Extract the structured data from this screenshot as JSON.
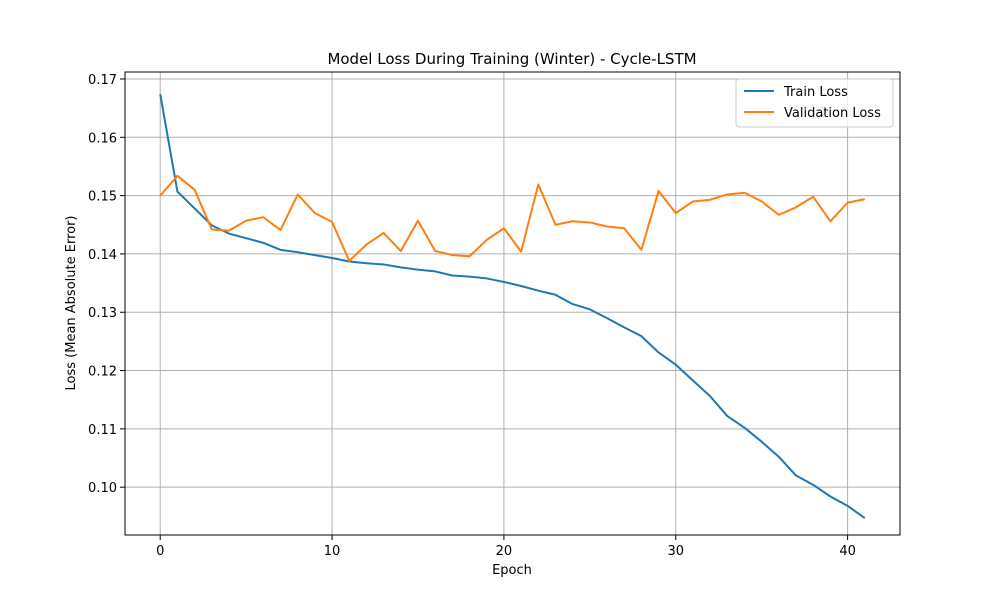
{
  "chart_data": {
    "type": "line",
    "title": "Model Loss During Training (Winter) - Cycle-LSTM",
    "xlabel": "Epoch",
    "ylabel": "Loss (Mean Absolute Error)",
    "xlim": [
      -2.05,
      43.05
    ],
    "ylim": [
      0.0918,
      0.1712
    ],
    "xticks": [
      0,
      10,
      20,
      30,
      40
    ],
    "yticks": [
      0.1,
      0.11,
      0.12,
      0.13,
      0.14,
      0.15,
      0.16,
      0.17
    ],
    "ytick_labels": [
      "0.10",
      "0.11",
      "0.12",
      "0.13",
      "0.14",
      "0.15",
      "0.16",
      "0.17"
    ],
    "grid": true,
    "legend_position": "top-right",
    "x": [
      0,
      1,
      2,
      3,
      4,
      5,
      6,
      7,
      8,
      9,
      10,
      11,
      12,
      13,
      14,
      15,
      16,
      17,
      18,
      19,
      20,
      21,
      22,
      23,
      24,
      25,
      26,
      27,
      28,
      29,
      30,
      31,
      32,
      33,
      34,
      35,
      36,
      37,
      38,
      39,
      40,
      41
    ],
    "series": [
      {
        "name": "Train Loss",
        "color": "#1f77b4",
        "values": [
          0.1674,
          0.1507,
          0.1478,
          0.1449,
          0.1435,
          0.1427,
          0.1419,
          0.1407,
          0.1403,
          0.1398,
          0.1393,
          0.1387,
          0.1384,
          0.1382,
          0.1377,
          0.1373,
          0.137,
          0.1363,
          0.1361,
          0.1358,
          0.1352,
          0.1345,
          0.1337,
          0.133,
          0.1314,
          0.1305,
          0.129,
          0.1274,
          0.1259,
          0.1231,
          0.121,
          0.1183,
          0.1156,
          0.1122,
          0.1102,
          0.1078,
          0.1052,
          0.102,
          0.1004,
          0.0984,
          0.0968,
          0.0947
        ]
      },
      {
        "name": "Validation Loss",
        "color": "#ff7f0e",
        "values": [
          0.15,
          0.1534,
          0.151,
          0.1442,
          0.144,
          0.1457,
          0.1463,
          0.1441,
          0.1502,
          0.147,
          0.1455,
          0.1388,
          0.1416,
          0.1436,
          0.1405,
          0.1457,
          0.1405,
          0.1398,
          0.1396,
          0.1424,
          0.1444,
          0.1404,
          0.1519,
          0.145,
          0.1456,
          0.1454,
          0.1447,
          0.1444,
          0.1407,
          0.1508,
          0.147,
          0.149,
          0.1493,
          0.1502,
          0.1505,
          0.149,
          0.1467,
          0.148,
          0.1498,
          0.1456,
          0.1488,
          0.1494
        ]
      }
    ]
  }
}
